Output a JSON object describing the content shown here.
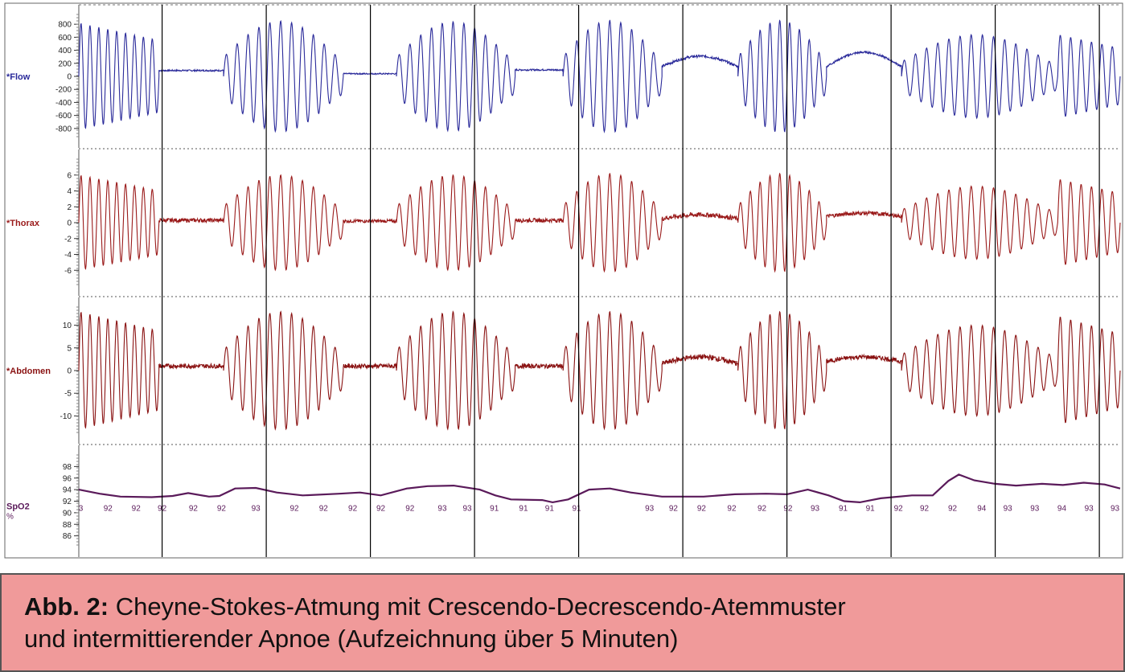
{
  "caption": {
    "lead": "Abb. 2:",
    "line1": "Cheyne-Stokes-Atmung mit Crescendo-Decrescendo-Atemmuster",
    "line2": "und intermittierender Apnoe (Aufzeichnung über 5 Minuten)"
  },
  "colors": {
    "flow": "#2a2a9a",
    "thorax": "#9a1a1a",
    "abdomen": "#8a1212",
    "spo2": "#5a1a5a",
    "grid": "#000000",
    "caption_bg": "#f09a9a"
  },
  "chart_data": {
    "type": "line",
    "panels": [
      {
        "id": "flow",
        "label": "*Flow",
        "ylim": [
          -950,
          950
        ],
        "ticks": [
          "800",
          "600",
          "400",
          "200",
          "0",
          "-200",
          "-400",
          "-600",
          "-800"
        ],
        "tick_values": [
          800,
          600,
          400,
          200,
          0,
          -200,
          -400,
          -600,
          -800
        ],
        "segments": [
          {
            "t0": 0.0,
            "t1": 0.077,
            "amp": 820,
            "shape": "dec",
            "cycles": 9
          },
          {
            "t0": 0.077,
            "t1": 0.139,
            "amp": 0,
            "base": 90,
            "noise": 12
          },
          {
            "t0": 0.139,
            "t1": 0.254,
            "amp": 850,
            "shape": "cre",
            "cycles": 11
          },
          {
            "t0": 0.254,
            "t1": 0.305,
            "amp": 0,
            "base": 40,
            "noise": 10
          },
          {
            "t0": 0.305,
            "t1": 0.419,
            "amp": 840,
            "shape": "cre",
            "cycles": 11
          },
          {
            "t0": 0.419,
            "t1": 0.465,
            "amp": 0,
            "base": 100,
            "noise": 12
          },
          {
            "t0": 0.465,
            "t1": 0.56,
            "amp": 860,
            "shape": "cre",
            "cycles": 9
          },
          {
            "t0": 0.56,
            "t1": 0.633,
            "amp": 0,
            "base": 150,
            "noise": 20,
            "hump": 160
          },
          {
            "t0": 0.633,
            "t1": 0.718,
            "amp": 860,
            "shape": "cre",
            "cycles": 9
          },
          {
            "t0": 0.718,
            "t1": 0.79,
            "amp": 0,
            "base": 150,
            "noise": 15,
            "hump": 220
          },
          {
            "t0": 0.79,
            "t1": 0.94,
            "amp": 640,
            "shape": "cre",
            "cycles": 14
          },
          {
            "t0": 0.94,
            "t1": 1.0,
            "amp": 640,
            "shape": "dec",
            "cycles": 6
          }
        ]
      },
      {
        "id": "thorax",
        "label": "*Thorax",
        "ylim": [
          -8,
          8
        ],
        "ticks": [
          "6",
          "4",
          "2",
          "0",
          "-2",
          "-4",
          "-6"
        ],
        "tick_values": [
          6,
          4,
          2,
          0,
          -2,
          -4,
          -6
        ],
        "segments": [
          {
            "t0": 0.0,
            "t1": 0.077,
            "amp": 6,
            "shape": "dec",
            "cycles": 9
          },
          {
            "t0": 0.077,
            "t1": 0.139,
            "amp": 0,
            "base": 0.3,
            "noise": 0.25
          },
          {
            "t0": 0.139,
            "t1": 0.254,
            "amp": 6,
            "shape": "cre",
            "cycles": 11
          },
          {
            "t0": 0.254,
            "t1": 0.305,
            "amp": 0,
            "base": 0.2,
            "noise": 0.2
          },
          {
            "t0": 0.305,
            "t1": 0.419,
            "amp": 6,
            "shape": "cre",
            "cycles": 11
          },
          {
            "t0": 0.419,
            "t1": 0.465,
            "amp": 0,
            "base": 0.3,
            "noise": 0.25
          },
          {
            "t0": 0.465,
            "t1": 0.56,
            "amp": 6.2,
            "shape": "cre",
            "cycles": 9
          },
          {
            "t0": 0.56,
            "t1": 0.633,
            "amp": 0,
            "base": 0.5,
            "noise": 0.3,
            "hump": 0.5
          },
          {
            "t0": 0.633,
            "t1": 0.718,
            "amp": 6.2,
            "shape": "cre",
            "cycles": 9
          },
          {
            "t0": 0.718,
            "t1": 0.79,
            "amp": 0,
            "base": 0.8,
            "noise": 0.25,
            "hump": 0.4
          },
          {
            "t0": 0.79,
            "t1": 0.94,
            "amp": 4.6,
            "shape": "cre",
            "cycles": 14
          },
          {
            "t0": 0.94,
            "t1": 1.0,
            "amp": 5.5,
            "shape": "dec",
            "cycles": 6
          }
        ]
      },
      {
        "id": "abdomen",
        "label": "*Abdomen",
        "ylim": [
          -14,
          14
        ],
        "ticks": [
          "10",
          "5",
          "0",
          "-5",
          "-10"
        ],
        "tick_values": [
          10,
          5,
          0,
          -5,
          -10
        ],
        "segments": [
          {
            "t0": 0.0,
            "t1": 0.077,
            "amp": 13,
            "shape": "dec",
            "cycles": 9
          },
          {
            "t0": 0.077,
            "t1": 0.139,
            "amp": 0,
            "base": 1,
            "noise": 0.5
          },
          {
            "t0": 0.139,
            "t1": 0.254,
            "amp": 13,
            "shape": "cre",
            "cycles": 11
          },
          {
            "t0": 0.254,
            "t1": 0.305,
            "amp": 0,
            "base": 1,
            "noise": 0.5
          },
          {
            "t0": 0.305,
            "t1": 0.419,
            "amp": 13,
            "shape": "cre",
            "cycles": 11
          },
          {
            "t0": 0.419,
            "t1": 0.465,
            "amp": 0,
            "base": 1,
            "noise": 0.5
          },
          {
            "t0": 0.465,
            "t1": 0.56,
            "amp": 13,
            "shape": "cre",
            "cycles": 9
          },
          {
            "t0": 0.56,
            "t1": 0.633,
            "amp": 0,
            "base": 1.5,
            "noise": 0.6,
            "hump": 1.5
          },
          {
            "t0": 0.633,
            "t1": 0.718,
            "amp": 13,
            "shape": "cre",
            "cycles": 9
          },
          {
            "t0": 0.718,
            "t1": 0.79,
            "amp": 0,
            "base": 2,
            "noise": 0.5,
            "hump": 1
          },
          {
            "t0": 0.79,
            "t1": 0.94,
            "amp": 10,
            "shape": "cre",
            "cycles": 14
          },
          {
            "t0": 0.94,
            "t1": 1.0,
            "amp": 12,
            "shape": "dec",
            "cycles": 6
          }
        ]
      },
      {
        "id": "spo2",
        "label": "SpO2",
        "unit": "%",
        "ylim": [
          84,
          100
        ],
        "ticks": [
          "98",
          "96",
          "94",
          "92",
          "90",
          "88",
          "86"
        ],
        "tick_values": [
          98,
          96,
          94,
          92,
          90,
          88,
          86
        ],
        "line": [
          [
            0.0,
            94.0
          ],
          [
            0.02,
            93.3
          ],
          [
            0.04,
            92.8
          ],
          [
            0.07,
            92.7
          ],
          [
            0.09,
            92.9
          ],
          [
            0.105,
            93.4
          ],
          [
            0.125,
            92.8
          ],
          [
            0.135,
            92.9
          ],
          [
            0.15,
            94.2
          ],
          [
            0.17,
            94.3
          ],
          [
            0.19,
            93.5
          ],
          [
            0.215,
            93.0
          ],
          [
            0.25,
            93.3
          ],
          [
            0.27,
            93.5
          ],
          [
            0.29,
            93.0
          ],
          [
            0.315,
            94.2
          ],
          [
            0.335,
            94.6
          ],
          [
            0.36,
            94.7
          ],
          [
            0.385,
            94.0
          ],
          [
            0.4,
            93.0
          ],
          [
            0.415,
            92.3
          ],
          [
            0.445,
            92.2
          ],
          [
            0.455,
            91.8
          ],
          [
            0.47,
            92.3
          ],
          [
            0.49,
            94.0
          ],
          [
            0.51,
            94.2
          ],
          [
            0.53,
            93.5
          ],
          [
            0.56,
            92.8
          ],
          [
            0.6,
            92.8
          ],
          [
            0.63,
            93.2
          ],
          [
            0.66,
            93.3
          ],
          [
            0.68,
            93.2
          ],
          [
            0.7,
            94.0
          ],
          [
            0.72,
            93.0
          ],
          [
            0.735,
            92.0
          ],
          [
            0.75,
            91.8
          ],
          [
            0.77,
            92.5
          ],
          [
            0.8,
            93.0
          ],
          [
            0.82,
            93.0
          ],
          [
            0.835,
            95.5
          ],
          [
            0.845,
            96.6
          ],
          [
            0.86,
            95.6
          ],
          [
            0.88,
            95.0
          ],
          [
            0.9,
            94.7
          ],
          [
            0.925,
            95.0
          ],
          [
            0.945,
            94.8
          ],
          [
            0.965,
            95.2
          ],
          [
            0.985,
            94.9
          ],
          [
            1.0,
            94.2
          ]
        ],
        "annotations": [
          {
            "t": 0.002,
            "text": "3"
          },
          {
            "t": 0.028,
            "text": "92"
          },
          {
            "t": 0.055,
            "text": "92"
          },
          {
            "t": 0.08,
            "text": "92"
          },
          {
            "t": 0.11,
            "text": "92"
          },
          {
            "t": 0.137,
            "text": "92"
          },
          {
            "t": 0.17,
            "text": "93"
          },
          {
            "t": 0.207,
            "text": "92"
          },
          {
            "t": 0.235,
            "text": "92"
          },
          {
            "t": 0.263,
            "text": "92"
          },
          {
            "t": 0.29,
            "text": "92"
          },
          {
            "t": 0.318,
            "text": "92"
          },
          {
            "t": 0.349,
            "text": "93"
          },
          {
            "t": 0.373,
            "text": "93"
          },
          {
            "t": 0.399,
            "text": "91"
          },
          {
            "t": 0.427,
            "text": "91"
          },
          {
            "t": 0.452,
            "text": "91"
          },
          {
            "t": 0.478,
            "text": "91"
          },
          {
            "t": 0.548,
            "text": "93"
          },
          {
            "t": 0.571,
            "text": "92"
          },
          {
            "t": 0.598,
            "text": "92"
          },
          {
            "t": 0.627,
            "text": "92"
          },
          {
            "t": 0.656,
            "text": "92"
          },
          {
            "t": 0.681,
            "text": "92"
          },
          {
            "t": 0.707,
            "text": "93"
          },
          {
            "t": 0.734,
            "text": "91"
          },
          {
            "t": 0.76,
            "text": "91"
          },
          {
            "t": 0.787,
            "text": "92"
          },
          {
            "t": 0.812,
            "text": "92"
          },
          {
            "t": 0.839,
            "text": "92"
          },
          {
            "t": 0.867,
            "text": "94"
          },
          {
            "t": 0.892,
            "text": "93"
          },
          {
            "t": 0.918,
            "text": "93"
          },
          {
            "t": 0.944,
            "text": "94"
          },
          {
            "t": 0.97,
            "text": "93"
          },
          {
            "t": 0.995,
            "text": "93"
          }
        ]
      }
    ],
    "epoch_markers": [
      0.08,
      0.18,
      0.28,
      0.38,
      0.48,
      0.58,
      0.68,
      0.78,
      0.88,
      0.98
    ]
  }
}
